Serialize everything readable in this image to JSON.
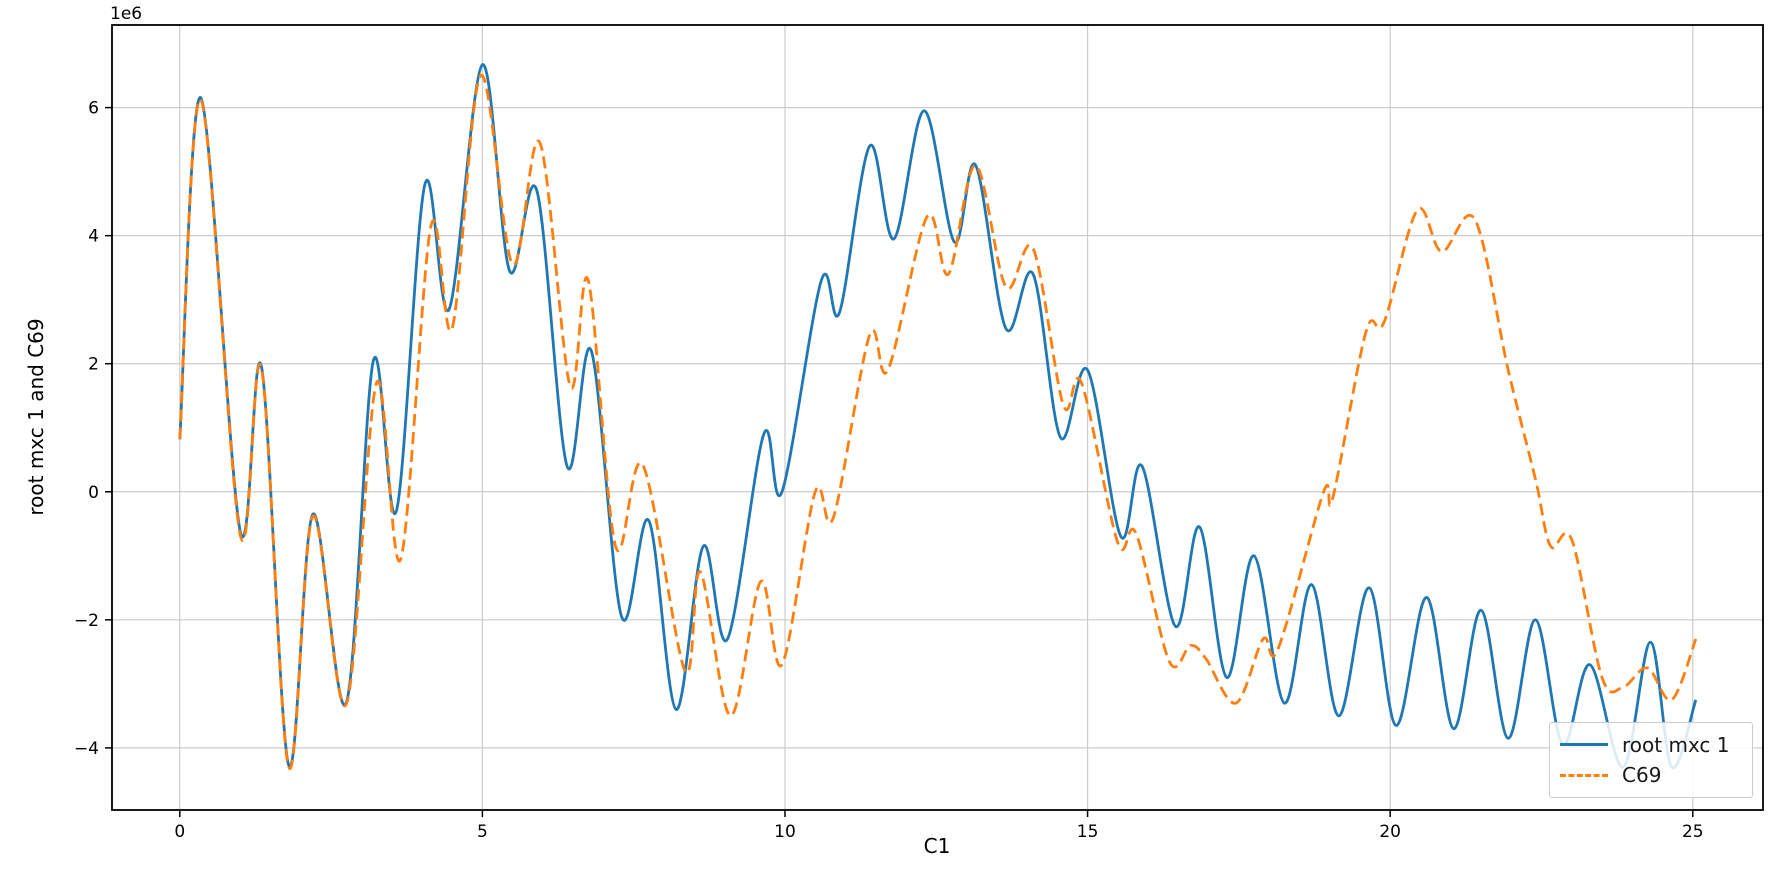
{
  "figure": {
    "offset_text": "1e6",
    "xlabel": "C1",
    "ylabel": "root mxc 1 and C69",
    "background_color": "#ffffff",
    "spine_color": "#000000",
    "grid_color": "#cccccc"
  },
  "chart_data": {
    "type": "line",
    "title": "",
    "xlabel": "C1",
    "ylabel": "root mxc 1 and C69",
    "y_offset_text": "1e6",
    "y_unit_multiplier": 1000000,
    "grid": true,
    "legend_position": "lower right",
    "xlim": [
      -1.12,
      26.16
    ],
    "ylim": [
      -4.97,
      7.29
    ],
    "x_ticks": [
      0,
      5,
      10,
      15,
      20,
      25
    ],
    "x_tick_labels": [
      "0",
      "5",
      "10",
      "15",
      "20",
      "25"
    ],
    "y_ticks": [
      -4,
      -2,
      0,
      2,
      4,
      6
    ],
    "y_tick_labels": [
      "−4",
      "−2",
      "0",
      "2",
      "4",
      "6"
    ],
    "series": [
      {
        "name": "root mxc 1",
        "color": "#1f77b4",
        "style": "solid",
        "line_width": 2.8,
        "points": [
          [
            0.0,
            0.82
          ],
          [
            0.35,
            6.15
          ],
          [
            1.0,
            -0.62
          ],
          [
            1.35,
            1.95
          ],
          [
            1.8,
            -4.27
          ],
          [
            2.2,
            -0.35
          ],
          [
            2.75,
            -3.3
          ],
          [
            3.2,
            2.05
          ],
          [
            3.58,
            -0.3
          ],
          [
            4.05,
            4.8
          ],
          [
            4.45,
            2.85
          ],
          [
            5.0,
            6.67
          ],
          [
            5.45,
            3.45
          ],
          [
            5.9,
            4.7
          ],
          [
            6.4,
            0.4
          ],
          [
            6.8,
            2.2
          ],
          [
            7.3,
            -1.95
          ],
          [
            7.75,
            -0.45
          ],
          [
            8.2,
            -3.4
          ],
          [
            8.65,
            -0.85
          ],
          [
            9.05,
            -2.3
          ],
          [
            9.65,
            0.9
          ],
          [
            9.95,
            0.0
          ],
          [
            10.6,
            3.3
          ],
          [
            10.9,
            2.8
          ],
          [
            11.4,
            5.4
          ],
          [
            11.8,
            3.95
          ],
          [
            12.3,
            5.95
          ],
          [
            12.8,
            3.9
          ],
          [
            13.15,
            5.1
          ],
          [
            13.65,
            2.55
          ],
          [
            14.1,
            3.4
          ],
          [
            14.55,
            0.85
          ],
          [
            15.0,
            1.9
          ],
          [
            15.55,
            -0.7
          ],
          [
            15.9,
            0.4
          ],
          [
            16.45,
            -2.1
          ],
          [
            16.85,
            -0.55
          ],
          [
            17.3,
            -2.9
          ],
          [
            17.75,
            -1.0
          ],
          [
            18.25,
            -3.3
          ],
          [
            18.7,
            -1.45
          ],
          [
            19.15,
            -3.5
          ],
          [
            19.65,
            -1.5
          ],
          [
            20.1,
            -3.65
          ],
          [
            20.6,
            -1.65
          ],
          [
            21.05,
            -3.7
          ],
          [
            21.5,
            -1.85
          ],
          [
            21.95,
            -3.85
          ],
          [
            22.4,
            -2.0
          ],
          [
            22.85,
            -3.95
          ],
          [
            23.3,
            -2.7
          ],
          [
            23.85,
            -4.3
          ],
          [
            24.3,
            -2.35
          ],
          [
            24.65,
            -4.3
          ],
          [
            25.05,
            -3.25
          ]
        ]
      },
      {
        "name": "C69",
        "color": "#ff7f0e",
        "style": "dashed",
        "line_width": 2.8,
        "points": [
          [
            0.0,
            0.82
          ],
          [
            0.35,
            6.12
          ],
          [
            1.0,
            -0.68
          ],
          [
            1.35,
            1.93
          ],
          [
            1.8,
            -4.3
          ],
          [
            2.2,
            -0.38
          ],
          [
            2.75,
            -3.32
          ],
          [
            3.25,
            1.7
          ],
          [
            3.65,
            -1.05
          ],
          [
            4.15,
            4.15
          ],
          [
            4.5,
            2.55
          ],
          [
            4.97,
            6.5
          ],
          [
            5.5,
            3.55
          ],
          [
            5.95,
            5.45
          ],
          [
            6.45,
            1.65
          ],
          [
            6.75,
            3.3
          ],
          [
            7.2,
            -0.85
          ],
          [
            7.65,
            0.42
          ],
          [
            8.35,
            -2.8
          ],
          [
            8.6,
            -1.25
          ],
          [
            9.1,
            -3.5
          ],
          [
            9.6,
            -1.4
          ],
          [
            9.95,
            -2.7
          ],
          [
            10.5,
            0.0
          ],
          [
            10.8,
            -0.4
          ],
          [
            11.4,
            2.45
          ],
          [
            11.7,
            1.9
          ],
          [
            12.35,
            4.3
          ],
          [
            12.7,
            3.4
          ],
          [
            13.15,
            5.1
          ],
          [
            13.65,
            3.2
          ],
          [
            14.1,
            3.8
          ],
          [
            14.6,
            1.35
          ],
          [
            14.9,
            1.7
          ],
          [
            15.5,
            -0.8
          ],
          [
            15.8,
            -0.65
          ],
          [
            16.35,
            -2.65
          ],
          [
            16.7,
            -2.4
          ],
          [
            16.95,
            -2.6
          ],
          [
            17.45,
            -3.3
          ],
          [
            17.9,
            -2.3
          ],
          [
            18.15,
            -2.45
          ],
          [
            18.9,
            0.0
          ],
          [
            19.05,
            -0.1
          ],
          [
            19.6,
            2.5
          ],
          [
            19.9,
            2.65
          ],
          [
            20.45,
            4.4
          ],
          [
            20.85,
            3.75
          ],
          [
            21.4,
            4.25
          ],
          [
            21.95,
            1.9
          ],
          [
            22.4,
            0.2
          ],
          [
            22.65,
            -0.85
          ],
          [
            23.0,
            -0.75
          ],
          [
            23.5,
            -2.9
          ],
          [
            23.85,
            -3.05
          ],
          [
            24.25,
            -2.75
          ],
          [
            24.65,
            -3.25
          ],
          [
            25.05,
            -2.3
          ]
        ]
      }
    ],
    "legend_entries": [
      {
        "label": "root mxc 1"
      },
      {
        "label": "C69"
      }
    ]
  }
}
